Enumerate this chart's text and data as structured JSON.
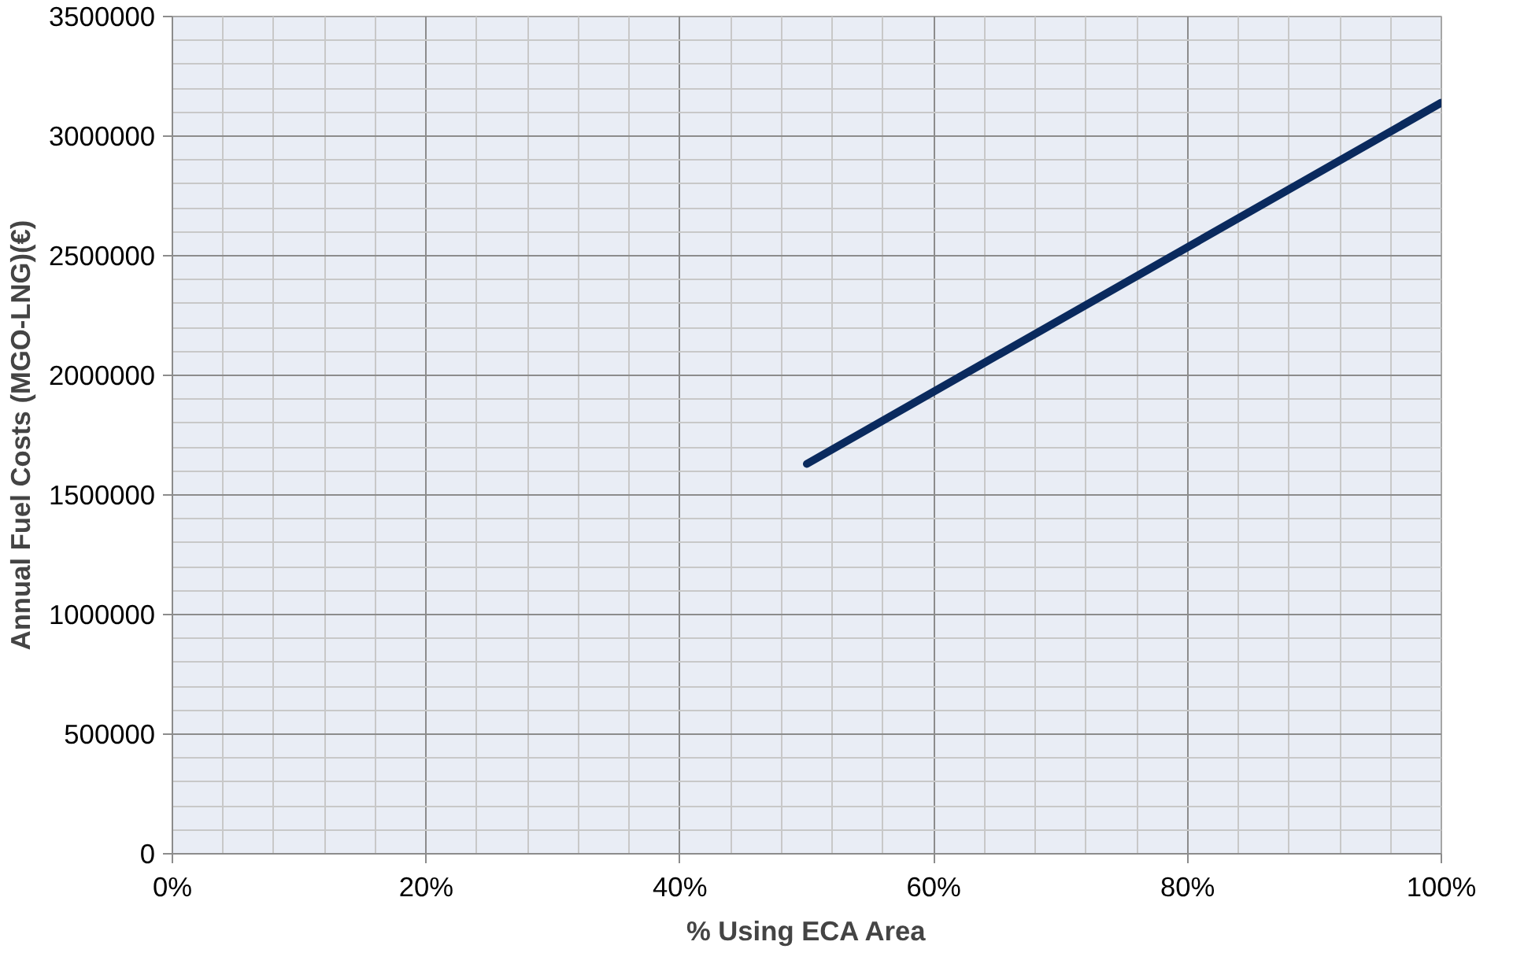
{
  "chart_data": {
    "type": "line",
    "xlabel": "% Using ECA Area",
    "ylabel": "Annual Fuel Costs (MGO-LNG)(€)",
    "x": [
      0.5,
      1.0
    ],
    "series": [
      {
        "color": "#0a2a5e",
        "values": [
          1630000,
          3140000
        ]
      }
    ],
    "xlim": [
      0,
      1
    ],
    "xticks": [
      {
        "value": 0,
        "label": "0%"
      },
      {
        "value": 0.2,
        "label": "20%"
      },
      {
        "value": 0.4,
        "label": "40%"
      },
      {
        "value": 0.6,
        "label": "60%"
      },
      {
        "value": 0.8,
        "label": "80%"
      },
      {
        "value": 1.0,
        "label": "100%"
      }
    ],
    "ylim": [
      0,
      3500000
    ],
    "yticks": [
      0,
      500000,
      1000000,
      1500000,
      2000000,
      2500000,
      3000000,
      3500000
    ],
    "grid": true,
    "marker": "none",
    "line_style": "solid"
  }
}
